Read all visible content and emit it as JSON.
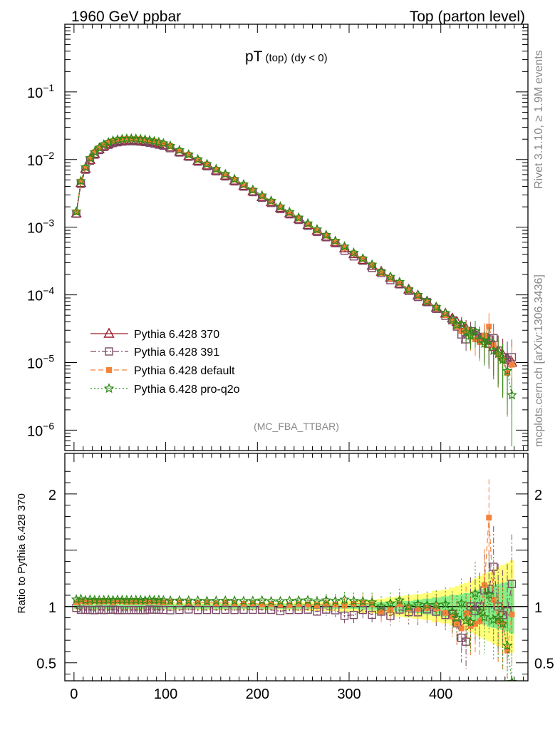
{
  "header": {
    "left": "1960 GeV ppbar",
    "right": "Top (parton level)"
  },
  "main": {
    "title_main": "pT",
    "title_sub": "(top)",
    "title_cut": "(dy < 0)",
    "analysis_id": "(MC_FBA_TTBAR)"
  },
  "side": {
    "rivet": "Rivet 3.1.10, ≥ 1.9M events",
    "mcplots": "mcplots.cern.ch [arXiv:1306.3436]"
  },
  "ratio": {
    "ylabel": "Ratio to Pythia 6.428 370"
  },
  "colors": {
    "s370": "#9c1c2c",
    "s391": "#7b4a66",
    "default": "#f5823a",
    "proq2o": "#2e8b16",
    "band_yellow": "#ffff7a",
    "band_green": "#88ee88"
  },
  "chart_data": [
    {
      "type": "line",
      "ylog": true,
      "xlim": [
        -10,
        495
      ],
      "ylim": [
        5e-07,
        1
      ],
      "yticks": [
        {
          "value": 1e-06,
          "base": "10",
          "exp": "−6"
        },
        {
          "value": 1e-05,
          "base": "10",
          "exp": "−5"
        },
        {
          "value": 0.0001,
          "base": "10",
          "exp": "−4"
        },
        {
          "value": 0.001,
          "base": "10",
          "exp": "−3"
        },
        {
          "value": 0.01,
          "base": "10",
          "exp": "−2"
        },
        {
          "value": 0.1,
          "base": "10",
          "exp": "−1"
        }
      ],
      "x": [
        2.5,
        7.5,
        12.5,
        17.5,
        22.5,
        27.5,
        32.5,
        37.5,
        42.5,
        47.5,
        52.5,
        57.5,
        62.5,
        67.5,
        72.5,
        77.5,
        82.5,
        87.5,
        92.5,
        97.5,
        105,
        115,
        125,
        135,
        145,
        155,
        165,
        175,
        185,
        195,
        205,
        215,
        225,
        235,
        245,
        255,
        265,
        275,
        285,
        295,
        305,
        315,
        325,
        335,
        345,
        355,
        365,
        375,
        385,
        395,
        405,
        412.5,
        417.5,
        422.5,
        427.5,
        432.5,
        437.5,
        442.5,
        447.5,
        452.5,
        457.5,
        462.5,
        467.5,
        472.5,
        477.5
      ],
      "series": [
        {
          "name": "Pythia 6.428 370",
          "marker": "triangle",
          "dash": "",
          "values": [
            0.0016,
            0.0045,
            0.0073,
            0.0099,
            0.0122,
            0.0142,
            0.0158,
            0.017,
            0.018,
            0.0186,
            0.019,
            0.0192,
            0.0193,
            0.0192,
            0.019,
            0.0187,
            0.0182,
            0.0177,
            0.0171,
            0.0165,
            0.0152,
            0.0131,
            0.0113,
            0.0096,
            0.0082,
            0.0069,
            0.0058,
            0.0049,
            0.0041,
            0.0034,
            0.0028,
            0.00235,
            0.00193,
            0.0016,
            0.00132,
            0.00108,
            0.00089,
            0.00073,
            0.0006,
            0.00049,
            0.0004,
            0.00033,
            0.00027,
            0.00022,
            0.00018,
            0.000147,
            0.00012,
            9.8e-05,
            8e-05,
            6.5e-05,
            5.3e-05,
            4.5e-05,
            4e-05,
            3.6e-05,
            3.2e-05,
            2.9e-05,
            2.6e-05,
            2.3e-05,
            2.1e-05,
            1.9e-05,
            1.7e-05,
            1.5e-05,
            1.3e-05,
            1.15e-05,
            1e-05
          ]
        },
        {
          "name": "Pythia 6.428 391",
          "marker": "square",
          "dash": "8,3,2,3",
          "values": [
            0.00158,
            0.00437,
            0.00708,
            0.0096,
            0.0118,
            0.0138,
            0.0153,
            0.0165,
            0.0175,
            0.018,
            0.0184,
            0.0186,
            0.0187,
            0.0186,
            0.0184,
            0.0181,
            0.0177,
            0.0172,
            0.0166,
            0.016,
            0.0147,
            0.0127,
            0.011,
            0.0093,
            0.00795,
            0.00669,
            0.00563,
            0.00475,
            0.00398,
            0.0033,
            0.00272,
            0.00228,
            0.00185,
            0.00155,
            0.00128,
            0.00105,
            0.00085,
            0.00071,
            0.00058,
            0.00045,
            0.00037,
            0.00032,
            0.00025,
            0.00021,
            0.000165,
            0.000143,
            0.000114,
            9.3e-05,
            7.8e-05,
            6.2e-05,
            4.9e-05,
            4.2e-05,
            3.4e-05,
            2.6e-05,
            2.2e-05,
            2.9e-05,
            2.5e-05,
            2.3e-05,
            2.4e-05,
            2.2e-05,
            2.3e-05,
            1.5e-05,
            1.2e-05,
            1.1e-05,
            1.2e-05
          ]
        },
        {
          "name": "Pythia 6.428 default",
          "marker": "filledsquare",
          "dash": "7,4",
          "values": [
            0.00166,
            0.00472,
            0.0076,
            0.0103,
            0.0128,
            0.0148,
            0.0165,
            0.0178,
            0.0187,
            0.0195,
            0.0199,
            0.02,
            0.0201,
            0.02,
            0.0198,
            0.0195,
            0.019,
            0.0185,
            0.0178,
            0.0171,
            0.0158,
            0.0136,
            0.0117,
            0.0099,
            0.0085,
            0.0071,
            0.006,
            0.00505,
            0.0042,
            0.0035,
            0.00285,
            0.0024,
            0.00196,
            0.00162,
            0.00135,
            0.0011,
            0.0009,
            0.00075,
            0.00061,
            0.000495,
            0.00041,
            0.00034,
            0.000275,
            0.00021,
            0.000175,
            0.00015,
            0.000118,
            9.6e-05,
            7.9e-05,
            6.4e-05,
            5e-05,
            4.1e-05,
            3.4e-05,
            2.9e-05,
            3e-05,
            2.4e-05,
            2.2e-05,
            2e-05,
            2.5e-05,
            3.4e-05,
            1.8e-05,
            1.3e-05,
            1.1e-05,
            7e-06,
            9.3e-06
          ]
        },
        {
          "name": "Pythia 6.428 pro-q2o",
          "marker": "star",
          "dash": "2,3",
          "values": [
            0.0017,
            0.0048,
            0.0077,
            0.0105,
            0.0129,
            0.015,
            0.0167,
            0.018,
            0.019,
            0.0197,
            0.0201,
            0.0203,
            0.0204,
            0.0203,
            0.0201,
            0.0197,
            0.0193,
            0.0187,
            0.0181,
            0.0174,
            0.016,
            0.0138,
            0.0119,
            0.0101,
            0.0086,
            0.00725,
            0.0061,
            0.00515,
            0.0043,
            0.00357,
            0.00295,
            0.00246,
            0.00202,
            0.00168,
            0.00139,
            0.00114,
            0.00093,
            0.00077,
            0.00063,
            0.00052,
            0.00042,
            0.000345,
            0.00028,
            0.00022,
            0.000185,
            0.000155,
            0.00012,
            0.0001,
            8.1e-05,
            6.6e-05,
            5.4e-05,
            4.3e-05,
            3.6e-05,
            3.7e-05,
            2.8e-05,
            2.5e-05,
            2.9e-05,
            2.2e-05,
            1.9e-05,
            2.1e-05,
            1.5e-05,
            1.35e-05,
            1.1e-05,
            7.5e-06,
            3.3e-06
          ]
        }
      ]
    },
    {
      "type": "line",
      "ylabel": "Ratio to Pythia 6.428 370",
      "xlim": [
        -10,
        495
      ],
      "ylim": [
        0.34,
        2.36
      ],
      "xticks": [
        0,
        100,
        200,
        300,
        400
      ],
      "yticks": [
        0.5,
        1,
        2
      ],
      "ytick_labels": [
        "0.5",
        "1",
        "2"
      ],
      "x": [
        2.5,
        7.5,
        12.5,
        17.5,
        22.5,
        27.5,
        32.5,
        37.5,
        42.5,
        47.5,
        52.5,
        57.5,
        62.5,
        67.5,
        72.5,
        77.5,
        82.5,
        87.5,
        92.5,
        97.5,
        105,
        115,
        125,
        135,
        145,
        155,
        165,
        175,
        185,
        195,
        205,
        215,
        225,
        235,
        245,
        255,
        265,
        275,
        285,
        295,
        305,
        315,
        325,
        335,
        345,
        355,
        365,
        375,
        385,
        395,
        405,
        412.5,
        417.5,
        422.5,
        427.5,
        432.5,
        437.5,
        442.5,
        447.5,
        452.5,
        457.5,
        462.5,
        467.5,
        472.5,
        477.5
      ],
      "band_green": [
        0.02,
        0.02,
        0.02,
        0.02,
        0.02,
        0.02,
        0.02,
        0.02,
        0.02,
        0.02,
        0.02,
        0.02,
        0.02,
        0.02,
        0.02,
        0.02,
        0.02,
        0.02,
        0.02,
        0.02,
        0.02,
        0.02,
        0.02,
        0.02,
        0.02,
        0.02,
        0.02,
        0.02,
        0.02,
        0.02,
        0.02,
        0.02,
        0.02,
        0.02,
        0.02,
        0.02,
        0.02,
        0.02,
        0.02,
        0.02,
        0.02,
        0.03,
        0.03,
        0.04,
        0.04,
        0.05,
        0.05,
        0.06,
        0.07,
        0.08,
        0.09,
        0.1,
        0.1,
        0.11,
        0.12,
        0.12,
        0.14,
        0.15,
        0.16,
        0.18,
        0.19,
        0.2,
        0.21,
        0.22,
        0.24
      ],
      "band_yellow": [
        0.03,
        0.03,
        0.03,
        0.03,
        0.03,
        0.03,
        0.03,
        0.03,
        0.03,
        0.03,
        0.03,
        0.03,
        0.03,
        0.03,
        0.03,
        0.03,
        0.03,
        0.03,
        0.03,
        0.03,
        0.03,
        0.03,
        0.03,
        0.03,
        0.03,
        0.03,
        0.03,
        0.03,
        0.03,
        0.03,
        0.03,
        0.03,
        0.03,
        0.03,
        0.04,
        0.04,
        0.04,
        0.04,
        0.04,
        0.05,
        0.05,
        0.06,
        0.06,
        0.07,
        0.08,
        0.09,
        0.1,
        0.11,
        0.12,
        0.14,
        0.15,
        0.17,
        0.18,
        0.2,
        0.21,
        0.23,
        0.25,
        0.27,
        0.29,
        0.31,
        0.33,
        0.35,
        0.37,
        0.39,
        0.41
      ]
    }
  ]
}
